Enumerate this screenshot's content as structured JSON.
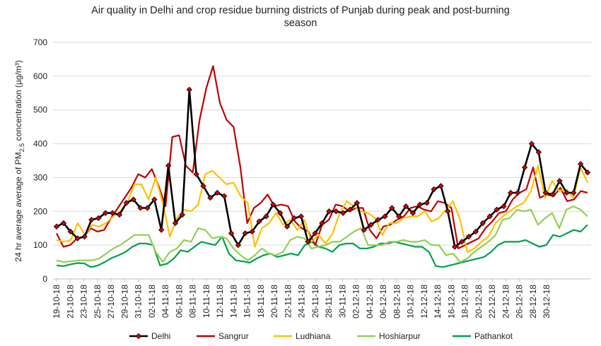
{
  "chart_data": {
    "type": "line",
    "title_line1": "Air quality in Delhi and crop residue burning districts of Punjab during peak and post-burning",
    "title_line2": "season",
    "ylabel_prefix": "24 hr average average of PM",
    "ylabel_sub": "2.5",
    "ylabel_suffix": " concentration (µg/m³)",
    "xlabel": "",
    "ylim": [
      0,
      700
    ],
    "yticks": [
      0,
      100,
      200,
      300,
      400,
      500,
      600,
      700
    ],
    "grid": "horizontal",
    "legend_position": "bottom",
    "x_start": "19-10-18",
    "x_end": "31-12-18",
    "x_tick_labels": [
      "19-10-18",
      "21-10-18",
      "23-10-18",
      "25-10-18",
      "27-10-18",
      "29-10-18",
      "31-10-18",
      "02-11-18",
      "04-11-18",
      "06-11-18",
      "08-11-18",
      "10-11-18",
      "12-11-18",
      "14-11-18",
      "16-11-18",
      "18-11-18",
      "20-11-18",
      "22-11-18",
      "24-11-18",
      "26-11-18",
      "28-11-18",
      "30-11-18",
      "02-12-18",
      "04-12-18",
      "06-12-18",
      "08-12-18",
      "10-12-18",
      "12-12-18",
      "14-12-18",
      "16-12-18",
      "18-12-18",
      "20-12-18",
      "22-12-18",
      "24-12-18",
      "26-12-18",
      "28-12-18",
      "30-12-18"
    ],
    "series": [
      {
        "name": "Delhi",
        "color": "#000000",
        "marker": "diamond-red",
        "values": [
          155,
          165,
          140,
          120,
          125,
          175,
          180,
          195,
          195,
          190,
          225,
          235,
          210,
          210,
          235,
          145,
          335,
          165,
          190,
          560,
          310,
          275,
          240,
          255,
          245,
          135,
          100,
          135,
          140,
          170,
          185,
          220,
          195,
          155,
          180,
          185,
          110,
          135,
          165,
          200,
          200,
          195,
          205,
          225,
          145,
          160,
          175,
          185,
          210,
          185,
          215,
          195,
          220,
          225,
          265,
          275,
          200,
          95,
          110,
          125,
          140,
          165,
          185,
          205,
          215,
          255,
          255,
          330,
          400,
          375,
          255,
          250,
          290,
          255,
          255,
          340,
          315
        ]
      },
      {
        "name": "Sangrur",
        "color": "#c00000",
        "marker": "none",
        "values": [
          135,
          95,
          100,
          120,
          125,
          150,
          140,
          145,
          180,
          210,
          240,
          270,
          310,
          300,
          325,
          275,
          215,
          420,
          425,
          335,
          315,
          470,
          565,
          630,
          520,
          470,
          450,
          330,
          165,
          210,
          225,
          250,
          215,
          220,
          215,
          170,
          150,
          140,
          100,
          160,
          175,
          220,
          215,
          200,
          210,
          210,
          145,
          120,
          155,
          160,
          175,
          185,
          210,
          215,
          205,
          200,
          230,
          225,
          210,
          90,
          100,
          110,
          120,
          150,
          170,
          195,
          200,
          235,
          255,
          265,
          330,
          240,
          250,
          245,
          270,
          230,
          235,
          260,
          255
        ]
      },
      {
        "name": "Ludhiana",
        "color": "#ffc000",
        "marker": "none",
        "values": [
          115,
          110,
          115,
          165,
          130,
          160,
          155,
          165,
          185,
          200,
          225,
          280,
          280,
          235,
          300,
          225,
          125,
          180,
          205,
          200,
          220,
          310,
          320,
          300,
          280,
          285,
          245,
          225,
          95,
          150,
          165,
          195,
          160,
          175,
          145,
          175,
          110,
          130,
          105,
          135,
          195,
          230,
          215,
          200,
          195,
          180,
          130,
          165,
          165,
          180,
          185,
          185,
          200,
          170,
          180,
          205,
          230,
          175,
          80,
          90,
          110,
          125,
          165,
          185,
          200,
          215,
          225,
          260,
          335,
          240,
          290,
          260,
          265,
          240,
          330,
          285
        ]
      },
      {
        "name": "Hoshiarpur",
        "color": "#92d050",
        "marker": "none",
        "values": [
          55,
          50,
          52,
          55,
          55,
          55,
          60,
          75,
          90,
          100,
          115,
          130,
          130,
          130,
          80,
          50,
          80,
          90,
          115,
          110,
          150,
          145,
          120,
          125,
          120,
          90,
          70,
          55,
          70,
          90,
          75,
          70,
          80,
          115,
          125,
          120,
          90,
          95,
          100,
          110,
          110,
          125,
          140,
          150,
          100,
          100,
          100,
          110,
          110,
          115,
          110,
          110,
          115,
          100,
          100,
          70,
          75,
          50,
          60,
          80,
          95,
          110,
          130,
          175,
          180,
          205,
          200,
          205,
          160,
          180,
          195,
          150,
          205,
          215,
          205,
          185
        ]
      },
      {
        "name": "Pathankot",
        "color": "#00a050",
        "marker": "none",
        "values": [
          40,
          38,
          43,
          47,
          46,
          35,
          40,
          50,
          62,
          70,
          80,
          95,
          105,
          105,
          100,
          40,
          45,
          60,
          85,
          80,
          95,
          110,
          105,
          100,
          125,
          75,
          55,
          52,
          48,
          60,
          70,
          75,
          65,
          70,
          75,
          70,
          100,
          110,
          95,
          90,
          80,
          100,
          105,
          105,
          90,
          90,
          95,
          105,
          105,
          110,
          105,
          100,
          95,
          95,
          80,
          38,
          35,
          40,
          45,
          50,
          55,
          60,
          65,
          80,
          100,
          110,
          110,
          110,
          115,
          105,
          95,
          100,
          130,
          125,
          135,
          145,
          140,
          160
        ]
      }
    ]
  }
}
